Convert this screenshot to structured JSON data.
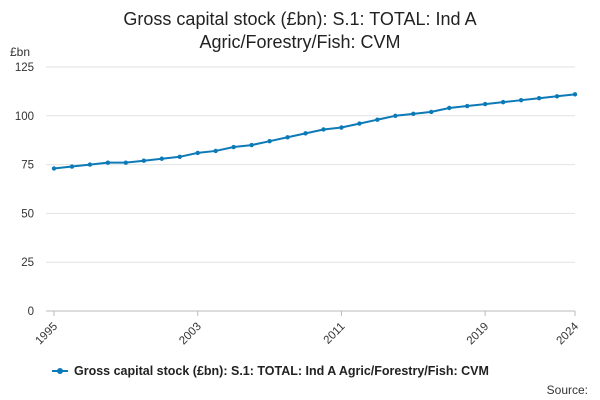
{
  "chart_data": {
    "type": "line",
    "title_line1": "Gross capital stock (£bn): S.1: TOTAL: Ind A",
    "title_line2": "Agric/Forestry/Fish: CVM",
    "ylabel": "£bn",
    "ylim": [
      0,
      125
    ],
    "yticks": [
      0,
      25,
      50,
      75,
      100,
      125
    ],
    "xlim": [
      1995,
      2024
    ],
    "xticks": [
      1995,
      2003,
      2011,
      2019,
      2024
    ],
    "grid": true,
    "legend_position": "bottom",
    "series": [
      {
        "name": "Gross capital stock (£bn): S.1: TOTAL: Ind A Agric/Forestry/Fish: CVM",
        "color": "#0d7ab8",
        "x": [
          1995,
          1996,
          1997,
          1998,
          1999,
          2000,
          2001,
          2002,
          2003,
          2004,
          2005,
          2006,
          2007,
          2008,
          2009,
          2010,
          2011,
          2012,
          2013,
          2014,
          2015,
          2016,
          2017,
          2018,
          2019,
          2020,
          2021,
          2022,
          2023,
          2024
        ],
        "values": [
          73,
          74,
          75,
          76,
          76,
          77,
          78,
          79,
          81,
          82,
          84,
          85,
          87,
          89,
          91,
          93,
          94,
          96,
          98,
          100,
          101,
          102,
          104,
          105,
          106,
          107,
          108,
          109,
          110,
          111
        ]
      }
    ]
  },
  "footer": {
    "source_label": "Source:"
  }
}
